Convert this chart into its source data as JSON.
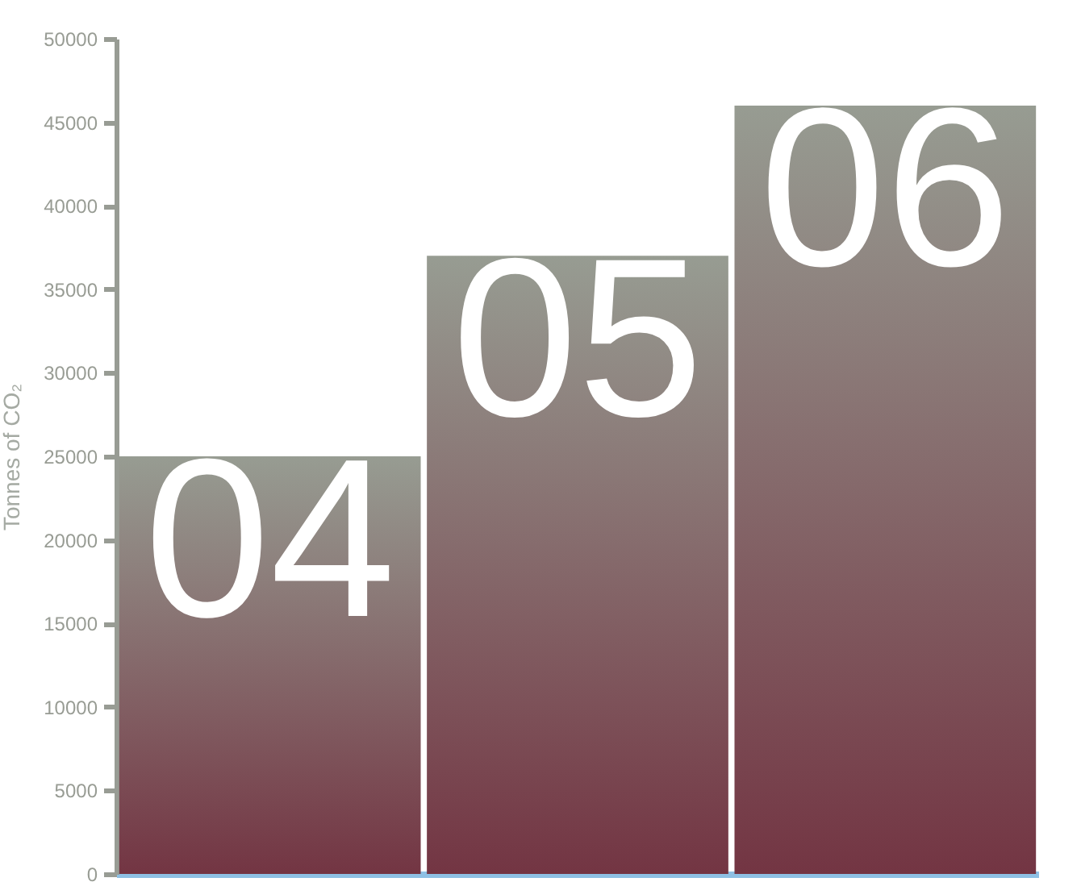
{
  "chart_data": {
    "type": "bar",
    "ylabel": "Tonnes of CO₂",
    "categories": [
      "04",
      "05",
      "06"
    ],
    "series": [
      {
        "color": "#733543",
        "values": [
          25000,
          37000,
          46000
        ]
      }
    ],
    "ylim": [
      0,
      50000
    ],
    "yticks": [
      0,
      5000,
      10000,
      15000,
      20000,
      25000,
      30000,
      35000,
      40000,
      45000,
      50000
    ],
    "grid": false
  }
}
